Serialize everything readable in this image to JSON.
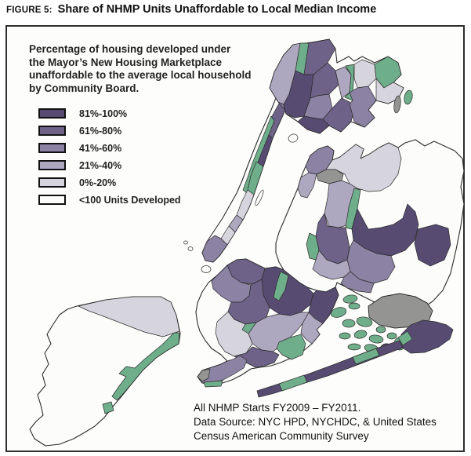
{
  "figure": {
    "label": "FIGURE 5:",
    "title": "Share of NHMP Units Unaffordable to Local Median Income"
  },
  "map_panel": {
    "description_lines": [
      "Percentage of housing developed under",
      "the Mayor’s New Housing Marketplace",
      "unaffordable to the average local household",
      "by Community Board."
    ],
    "legend": [
      {
        "label": "81%-100%",
        "key": "c5",
        "color": "#574b72"
      },
      {
        "label": "61%-80%",
        "key": "c4",
        "color": "#6e6288"
      },
      {
        "label": "41%-60%",
        "key": "c3",
        "color": "#8c82a4"
      },
      {
        "label": "21%-40%",
        "key": "c2",
        "color": "#aea7c0"
      },
      {
        "label": "0%-20%",
        "key": "c1",
        "color": "#d6d4dd"
      },
      {
        "label": "<100 Units Developed",
        "key": "c0",
        "color": "#fcfcfa"
      }
    ],
    "notes_lines": [
      "All NHMP Starts FY2009 – FY2011.",
      "Data Source: NYC HPD, NYCHDC, & United States",
      "Census American Community Survey"
    ]
  },
  "chart_data": {
    "type": "choropleth-map",
    "title": "Share of NHMP Units Unaffordable to Local Median Income",
    "geography": "New York City community boards (Bronx, Manhattan, Queens, Brooklyn, Staten Island)",
    "categories": [
      "81%-100%",
      "61%-80%",
      "41%-60%",
      "21%-40%",
      "0%-20%",
      "<100 Units Developed"
    ],
    "palette": {
      "c5": "#574b72",
      "c4": "#6e6288",
      "c3": "#8c82a4",
      "c2": "#aea7c0",
      "c1": "#d6d4dd",
      "c0": "#fcfcfa",
      "park": "#6fae8b",
      "other": "#949492",
      "stroke": "#2b2b2b",
      "water": "#ffffff"
    },
    "regions": [
      {
        "n": "staten-island",
        "f": "c0",
        "s": 1.1,
        "p": "98,390 135,382 170,378 205,378 218,385 225,402 230,425 228,438 214,446 199,456 182,472 168,489 155,505 144,518 133,532 121,543 108,551 94,559 76,566 58,568 44,559 38,547 46,537 55,529 52,516 48,503 58,491 54,477 62,464 57,450 65,438 60,426 68,413 76,401 86,394"
      },
      {
        "n": "si-north",
        "f": "c1",
        "p": "100,390 135,382 170,378 205,378 218,385 225,402 229,422 208,429 184,423 158,413 132,403 113,396"
      },
      {
        "n": "si-east-shore",
        "f": "park",
        "p": "229,424 228,438 214,446 199,456 182,472 168,489 156,503 149,510 143,505 152,492 161,480 152,476 161,467 172,469 184,458 196,448 207,439 215,431 222,424"
      },
      {
        "n": "si-park-south",
        "f": "park",
        "p": "131,515 142,512 145,523 134,527"
      },
      {
        "n": "brooklyn",
        "f": "c0",
        "s": 1.1,
        "p": "278,350 290,338 302,331 314,330 326,336 338,342 352,340 362,344 372,352 382,360 392,366 404,370 416,372 428,366 432,376 426,390 420,402 412,412 404,420 408,426 398,438 386,448 372,456 358,462 346,466 332,468 320,470 308,478 296,484 284,488 270,490 258,488 252,480 258,472 270,468 282,464 290,460 282,452 270,444 262,434 255,422 252,412 250,398 252,386 258,372 266,360"
      },
      {
        "n": "queens",
        "f": "c0",
        "s": 1.1,
        "p": "390,212 396,198 406,190 418,186 426,192 424,204 434,200 444,192 454,184 464,190 460,202 472,196 484,188 496,182 508,188 517,182 530,178 542,186 554,180 567,186 580,192 590,202 592,218 588,238 592,260 588,288 582,318 575,348 565,370 552,384 540,392 524,398 506,392 488,390 472,382 456,374 442,366 430,360 428,366 416,372 404,370 392,366 382,360 372,352 362,344 356,334 352,322 352,310 356,296 362,282 368,268 374,254 380,240 384,226"
      },
      {
        "n": "qn-astoria",
        "f": "c3",
        "p": "390,212 396,198 406,190 418,186 426,192 424,204 416,216 404,222 394,220"
      },
      {
        "n": "qn-lic",
        "f": "c2",
        "p": "394,220 404,222 400,238 392,252 384,250 380,240 384,226"
      },
      {
        "n": "qn-north-shore",
        "f": "c1",
        "p": "424,204 434,200 444,192 454,184 464,190 460,202 472,196 484,188 496,182 508,188 512,202 508,222 498,236 486,243 470,244 456,240 446,234 440,222 428,216 416,216"
      },
      {
        "n": "qn-laguardia",
        "f": "other",
        "p": "404,222 416,216 428,216 438,222 436,230 420,234 406,230"
      },
      {
        "n": "qn-elmhurst",
        "f": "c2",
        "p": "436,230 446,234 456,240 452,262 446,286 432,290 420,288 414,272 418,252 420,234"
      },
      {
        "n": "qn-flushing-meadows",
        "f": "park",
        "p": "452,240 460,242 456,266 449,292 441,290 445,264"
      },
      {
        "n": "qn-jamaica",
        "f": "c5",
        "p": "456,266 470,292 486,290 502,286 514,278 520,260 530,270 534,286 529,306 517,319 499,326 481,323 465,316 451,306 449,292"
      },
      {
        "n": "qn-hills",
        "f": "c3",
        "p": "451,306 465,316 481,323 499,326 504,340 494,356 477,361 459,356 447,346 443,331 446,316"
      },
      {
        "n": "qn-village",
        "f": "c5",
        "p": "533,292 556,286 572,291 575,312 567,331 549,339 534,331 529,310"
      },
      {
        "n": "qn-ridgewood",
        "f": "c4",
        "p": "414,272 418,288 432,290 441,290 446,315 443,331 431,336 417,331 407,319 403,301 406,284"
      },
      {
        "n": "qn-cemetery-belt",
        "f": "park",
        "p": "403,301 407,319 403,331 395,329 391,311 395,297"
      },
      {
        "n": "qn-woodhaven",
        "f": "c2",
        "p": "407,319 417,331 431,336 443,331 447,346 439,353 424,356 409,351 399,343 403,331"
      },
      {
        "n": "qn-ozone",
        "f": "c3",
        "p": "447,346 459,356 477,361 473,373 457,371 443,367 435,361 439,353"
      },
      {
        "n": "bk-greenpoint",
        "f": "c4",
        "p": "290,338 302,331 314,330 326,336 338,342 334,356 322,362 308,360 296,352"
      },
      {
        "n": "bk-bushwick",
        "f": "c5",
        "p": "334,356 338,342 352,340 362,344 372,352 382,360 392,366 400,374 396,388 384,398 370,402 356,400 344,392 336,376"
      },
      {
        "n": "bk-border-green",
        "f": "park",
        "p": "358,346 368,351 364,369 356,383 349,379 353,361"
      },
      {
        "n": "bk-heights",
        "f": "c3",
        "p": "278,350 290,338 296,352 308,360 320,363 318,377 308,385 295,385 283,378 272,368 270,358"
      },
      {
        "n": "bk-slope",
        "f": "c4",
        "p": "295,385 308,385 318,377 320,363 334,356 336,376 344,392 340,404 327,411 313,413 299,407 291,397"
      },
      {
        "n": "bk-prospect",
        "f": "park",
        "p": "313,413 327,411 330,421 317,425 309,420"
      },
      {
        "n": "bk-east-ny",
        "f": "c5",
        "p": "400,374 404,370 416,372 428,366 432,376 426,390 420,402 412,412 402,406 394,398 396,388"
      },
      {
        "n": "bk-canarsie",
        "f": "c2",
        "p": "394,398 402,406 412,412 404,420 408,426 398,438 390,432 384,424 386,412"
      },
      {
        "n": "bk-flatbush",
        "f": "c2",
        "p": "340,404 356,400 370,402 384,398 394,398 386,412 380,420 370,430 360,440 348,448 334,446 322,438 317,425 327,411"
      },
      {
        "n": "bk-borough-park",
        "f": "c1",
        "p": "291,397 299,407 313,413 309,420 317,425 322,438 314,450 299,454 287,448 279,437 275,424 277,410"
      },
      {
        "n": "bk-marine-park",
        "f": "park",
        "p": "356,436 370,430 384,426 390,438 386,452 372,458 360,452 353,444"
      },
      {
        "n": "bk-sheepshead",
        "f": "c4",
        "p": "299,454 314,450 322,442 334,446 348,448 356,452 350,462 338,466 326,468 314,462 305,457"
      },
      {
        "n": "bk-coney",
        "f": "c3",
        "p": "252,480 258,472 270,468 282,464 290,460 297,458 306,453 315,459 311,469 298,477 285,484 270,488 258,488"
      },
      {
        "n": "bk-coney-tip",
        "f": "other",
        "p": "252,480 258,472 268,470 266,482 258,486"
      },
      {
        "n": "bk-shore-green",
        "f": "park",
        "p": "260,487 284,485 282,492 262,493"
      },
      {
        "n": "manhattan",
        "f": "c0",
        "s": 1.1,
        "p": "366,100 374,106 372,122 364,140 356,158 348,176 342,194 336,212 330,230 324,248 318,264 310,280 300,296 290,312 280,326 272,334 262,332 258,322 264,308 274,293 284,278 293,262 302,246 309,230 315,214 322,196 330,176 338,158 346,140 354,120 360,104"
      },
      {
        "n": "mn-inwood",
        "f": "c3",
        "p": "354,120 360,104 366,100 374,106 372,122 364,140 356,132"
      },
      {
        "n": "mn-washington-heights",
        "f": "c4",
        "p": "356,132 364,140 356,158 348,176 340,170 346,150"
      },
      {
        "n": "mn-harlem",
        "f": "c5",
        "p": "340,170 348,176 342,194 336,212 327,206 332,188"
      },
      {
        "n": "mn-riverside-park",
        "f": "park",
        "p": "346,148 350,154 342,174 334,194 327,212 321,230 315,246 310,242 316,226 322,208 330,188 338,168"
      },
      {
        "n": "mn-central-park",
        "f": "park",
        "p": "327,206 336,212 330,230 324,248 316,242 320,224"
      },
      {
        "n": "mn-uws",
        "f": "c1",
        "p": "316,242 324,248 318,264 310,280 302,274 308,258"
      },
      {
        "n": "mn-midtown",
        "f": "c2",
        "p": "302,274 310,280 300,296 292,288"
      },
      {
        "n": "mn-chelsea",
        "f": "c1",
        "p": "292,288 300,296 290,312 282,304"
      },
      {
        "n": "mn-lower",
        "f": "c3",
        "p": "282,304 290,312 280,326 272,334 262,332 258,322 264,308 274,300"
      },
      {
        "n": "roosevelt-island",
        "f": "c0",
        "e": [
          331,
          252,
          2.5,
          11,
          25
        ]
      },
      {
        "n": "randalls-island",
        "f": "c0",
        "e": [
          374,
          176,
          6,
          5,
          -20
        ]
      },
      {
        "n": "governors-island",
        "f": "c0",
        "e": [
          263,
          343,
          6,
          4.5,
          0
        ]
      },
      {
        "n": "liberty-island",
        "f": "c0",
        "e": [
          243,
          317,
          3,
          2.5,
          0
        ]
      },
      {
        "n": "ellis-island",
        "f": "c0",
        "e": [
          237,
          309,
          2.5,
          2,
          0
        ]
      },
      {
        "n": "bronx",
        "f": "c0",
        "s": 1.1,
        "p": "362,133 355,130 344,112 350,92 362,70 374,57 398,54 420,50 428,62 430,80 445,72 452,78 462,72 478,80 495,72 508,80 512,95 502,105 515,112 508,126 495,132 480,128 470,140 478,150 465,162 448,155 435,168 420,160 408,170 392,165 380,155 365,145"
      },
      {
        "n": "bx-riverdale",
        "f": "c2",
        "p": "355,130 344,112 350,92 362,70 374,57 383,55 377,90 369,120 362,133"
      },
      {
        "n": "bx-van-cortlandt",
        "f": "park",
        "p": "383,55 394,55 388,95 380,120 372,122 377,90"
      },
      {
        "n": "bx-north",
        "f": "c4",
        "p": "394,55 420,50 428,62 418,80 400,95 388,95"
      },
      {
        "n": "bx-west",
        "f": "c5",
        "p": "369,120 377,90 388,95 400,95 396,125 388,148 376,150 365,145 362,133"
      },
      {
        "n": "bx-central",
        "f": "c4",
        "p": "400,95 418,80 428,90 432,108 420,120 405,122 396,125"
      },
      {
        "n": "bx-crotona",
        "f": "c3",
        "p": "396,125 405,122 420,120 424,138 412,152 398,150 388,148"
      },
      {
        "n": "bx-east",
        "f": "c2",
        "p": "428,90 440,85 448,95 446,118 436,125 432,108"
      },
      {
        "n": "bx-bronx-park",
        "f": "park",
        "p": "441,84 452,82 450,128 440,124 446,118 448,95"
      },
      {
        "n": "bx-northeast",
        "f": "c1",
        "p": "452,82 462,76 478,82 480,100 470,110 456,112 452,100"
      },
      {
        "n": "bx-pelham-bay",
        "f": "park",
        "p": "478,82 495,72 508,80 512,95 502,105 490,112 480,100"
      },
      {
        "n": "bx-coop-city",
        "f": "c1",
        "p": "480,100 490,112 502,105 515,112 508,126 495,132 480,128"
      },
      {
        "n": "bx-soundview",
        "f": "c4",
        "p": "412,152 424,138 436,125 446,130 452,140 448,155 435,168 420,160"
      },
      {
        "n": "bx-south",
        "f": "c5",
        "p": "388,148 398,150 412,152 420,160 408,170 392,165 380,155"
      },
      {
        "n": "bx-throgs-neck",
        "f": "c3",
        "p": "450,128 446,118 456,112 470,110 480,128 470,140 478,150 465,162 452,155 446,132"
      },
      {
        "n": "hart-island",
        "f": "other",
        "e": [
          507,
          133,
          4,
          11,
          8
        ]
      },
      {
        "n": "city-island",
        "f": "park",
        "e": [
          521,
          124,
          5,
          9,
          12
        ]
      },
      {
        "n": "jfk-airport",
        "f": "other",
        "s": 1,
        "p": "470,390 488,378 510,374 530,378 545,386 552,396 547,409 529,416 504,418 484,414 471,404"
      },
      {
        "n": "bay-island-1",
        "f": "park",
        "e": [
          432,
          398,
          10,
          6,
          -15
        ]
      },
      {
        "n": "bay-island-2",
        "f": "park",
        "e": [
          452,
          390,
          7,
          4,
          0
        ]
      },
      {
        "n": "bay-island-3",
        "f": "park",
        "e": [
          447,
          381,
          9,
          5,
          -10
        ]
      },
      {
        "n": "bay-island-4",
        "f": "park",
        "e": [
          445,
          412,
          8,
          5,
          0
        ]
      },
      {
        "n": "bay-island-5",
        "f": "park",
        "e": [
          465,
          410,
          10,
          6,
          10
        ]
      },
      {
        "n": "bay-island-6",
        "f": "park",
        "e": [
          486,
          420,
          6,
          4,
          0
        ]
      },
      {
        "n": "bay-island-7",
        "f": "park",
        "e": [
          440,
          428,
          7,
          4,
          0
        ]
      },
      {
        "n": "bay-island-8",
        "f": "park",
        "e": [
          460,
          426,
          8,
          5,
          -12
        ]
      },
      {
        "n": "bay-island-9",
        "f": "park",
        "e": [
          480,
          432,
          9,
          5,
          8
        ]
      },
      {
        "n": "bay-island-10",
        "f": "park",
        "e": [
          500,
          428,
          6,
          4,
          0
        ]
      },
      {
        "n": "bay-island-11",
        "f": "park",
        "e": [
          452,
          442,
          8,
          4,
          0
        ]
      },
      {
        "n": "bay-island-12",
        "f": "park",
        "e": [
          474,
          444,
          9,
          5,
          12
        ]
      },
      {
        "n": "bay-island-13",
        "f": "c5",
        "e": [
          492,
          442,
          6,
          4,
          -15
        ]
      },
      {
        "n": "bay-island-14",
        "f": "park",
        "e": [
          510,
          438,
          7,
          8,
          0
        ]
      },
      {
        "n": "rockaway-east",
        "f": "c5",
        "p": "512,426 524,414 540,408 556,410 570,414 578,420 574,432 560,442 542,449 524,450 512,442"
      },
      {
        "n": "rockaway-strip",
        "f": "c5",
        "p": "330,506 328,498 356,489 392,477 430,463 466,449 494,439 510,434 514,443 490,452 456,465 418,479 380,491 350,501"
      },
      {
        "n": "rockaway-green-1",
        "f": "park",
        "p": "356,489 388,478 392,487 360,498"
      },
      {
        "n": "rockaway-green-2",
        "f": "park",
        "p": "450,455 480,444 484,453 454,464"
      },
      {
        "n": "rockaway-green-3",
        "f": "park",
        "p": "508,430 520,422 526,432 514,440"
      }
    ]
  }
}
